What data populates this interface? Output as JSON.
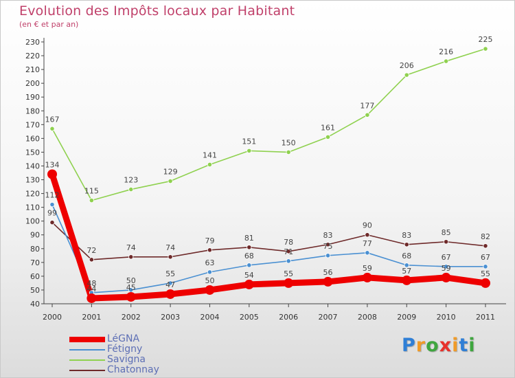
{
  "title": "Evolution des Impôts locaux par Habitant",
  "subtitle": "(en € et par an)",
  "logo": {
    "text": "Proxiti",
    "letter_colors": [
      "#2f7fd6",
      "#f09b28",
      "#3fa63f",
      "#e8302a",
      "#f09b28",
      "#2f7fd6",
      "#3fa63f"
    ]
  },
  "chart_data": {
    "type": "line",
    "title": "Evolution des Impôts locaux par Habitant",
    "subtitle": "(en € et par an)",
    "x": [
      "2000",
      "2001",
      "2002",
      "2003",
      "2004",
      "2005",
      "2006",
      "2007",
      "2008",
      "2009",
      "2010",
      "2011"
    ],
    "ylim": [
      40,
      230
    ],
    "yticks": [
      40,
      50,
      60,
      70,
      80,
      90,
      100,
      110,
      120,
      130,
      140,
      150,
      160,
      170,
      180,
      190,
      200,
      210,
      220,
      230
    ],
    "grid": false,
    "legend_position": "bottom-left",
    "series": [
      {
        "name": "LéGNA",
        "color": "#ee0000",
        "values": [
          134,
          44,
          45,
          47,
          50,
          54,
          55,
          56,
          59,
          57,
          59,
          55
        ]
      },
      {
        "name": "Fétigny",
        "color": "#4a90d2",
        "values": [
          112,
          48,
          50,
          55,
          63,
          68,
          71,
          75,
          77,
          68,
          67,
          67
        ]
      },
      {
        "name": "Savigna",
        "color": "#8fd14f",
        "values": [
          167,
          115,
          123,
          129,
          141,
          151,
          150,
          161,
          177,
          206,
          216,
          225
        ]
      },
      {
        "name": "Chatonnay",
        "color": "#6e2a2a",
        "values": [
          99,
          72,
          74,
          74,
          79,
          81,
          78,
          83,
          90,
          83,
          85,
          82
        ]
      }
    ]
  }
}
